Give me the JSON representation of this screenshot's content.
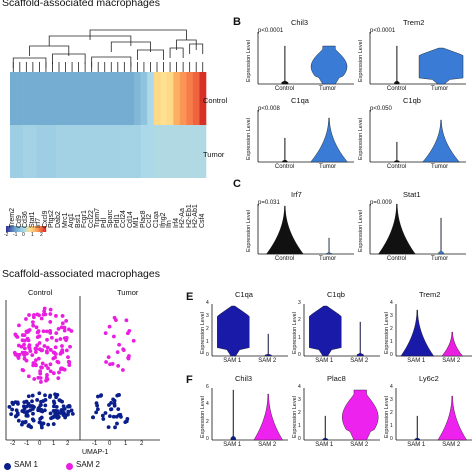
{
  "top_title": "Scaffold-associated macrophages",
  "bottom_title": "Scaffold-associated macrophages",
  "panel_labels": {
    "B": "B",
    "C": "C",
    "E": "E",
    "F": "F"
  },
  "heatmap": {
    "row_labels": [
      "Control",
      "Tumor"
    ],
    "genes": [
      "Trem2",
      "Cd9",
      "Cd36",
      "Stat1",
      "Irf7",
      "Cxcl9",
      "Ptgs2",
      "Dab2",
      "Mrc1",
      "Arg1",
      "Bst1",
      "Fcgr1",
      "Ccl22",
      "Trpm7",
      "Pdl",
      "Sparc",
      "Pdl1",
      "Ccl24",
      "Cd14",
      "Ml1",
      "Plac8",
      "Ccl2",
      "C1qa",
      "Ifng2",
      "Ifn",
      "Irf4",
      "H2-Aa",
      "H2-Eb1",
      "H2-Ab1",
      "Csf4"
    ],
    "control": [
      0.25,
      0.25,
      0.25,
      0.25,
      0.25,
      0.25,
      0.25,
      0.25,
      0.25,
      0.25,
      0.25,
      0.25,
      0.25,
      0.25,
      0.25,
      0.25,
      0.25,
      0.25,
      0.25,
      0.3,
      0.35,
      0.45,
      0.62,
      0.6,
      0.62,
      0.75,
      0.8,
      0.85,
      0.9,
      1.0
    ],
    "tumor": [
      0.4,
      0.4,
      0.42,
      0.42,
      0.4,
      0.4,
      0.4,
      0.42,
      0.42,
      0.42,
      0.42,
      0.42,
      0.42,
      0.42,
      0.42,
      0.42,
      0.42,
      0.42,
      0.42,
      0.42,
      0.45,
      0.45,
      0.46,
      0.46,
      0.46,
      0.46,
      0.46,
      0.46,
      0.46,
      0.46
    ]
  },
  "legend": {
    "ticks": [
      "-2",
      "-1",
      "0",
      "1",
      "2"
    ]
  },
  "violins_B": [
    {
      "gene": "Chil3",
      "pvalue": "p<0.0001",
      "xlabels": [
        "Control",
        "Tumor"
      ],
      "ylabel": "Expression Level"
    },
    {
      "gene": "Trem2",
      "pvalue": "p<0.0001",
      "xlabels": [
        "Control",
        "Tumor"
      ],
      "ylabel": "Expression Level"
    },
    {
      "gene": "C1qa",
      "pvalue": "p<0.008",
      "xlabels": [
        "Control",
        "Tumor"
      ],
      "ylabel": "Expression Level"
    },
    {
      "gene": "C1qb",
      "pvalue": "p<0.050",
      "xlabels": [
        "Control",
        "Tumor"
      ],
      "ylabel": "Expression Level"
    }
  ],
  "violins_C": [
    {
      "gene": "Irf7",
      "pvalue": "p=0.031",
      "xlabels": [
        "Control",
        "Tumor"
      ],
      "ylabel": "Expression Level"
    },
    {
      "gene": "Stat1",
      "pvalue": "p=0.009",
      "xlabels": [
        "Control",
        "Tumor"
      ],
      "ylabel": "Expression Level"
    }
  ],
  "umap": {
    "facets": [
      "Control",
      "Tumor"
    ],
    "x_ticks": [
      "-2",
      "-1",
      "0",
      "1",
      "2",
      "-1",
      "0",
      "1",
      "2"
    ],
    "xlabel": "UMAP-1",
    "legend": [
      {
        "label": "SAM 1",
        "color": "#0a1e8c"
      },
      {
        "label": "SAM 2",
        "color": "#e91ee0"
      }
    ]
  },
  "violins_E": [
    {
      "gene": "C1qa",
      "xlabels": [
        "SAM 1",
        "SAM 2"
      ],
      "y_ticks": [
        "0",
        "1",
        "2",
        "3",
        "4"
      ],
      "ylabel": "Expression Level",
      "color": "#1a1aa8"
    },
    {
      "gene": "C1qb",
      "xlabels": [
        "SAM 1",
        "SAM 2"
      ],
      "y_ticks": [
        "0",
        "1",
        "2",
        "3"
      ],
      "ylabel": "Expression Level",
      "color": "#1a1aa8"
    },
    {
      "gene": "Trem2",
      "xlabels": [
        "SAM 1",
        "SAM 2"
      ],
      "y_ticks": [
        "0",
        "1",
        "2",
        "3",
        "4"
      ],
      "ylabel": "Expression Level",
      "color": "#1a1aa8"
    }
  ],
  "violins_F": [
    {
      "gene": "Chil3",
      "xlabels": [
        "SAM 1",
        "SAM 2"
      ],
      "y_ticks": [
        "0",
        "2",
        "4",
        "6"
      ],
      "ylabel": "Expression Level",
      "color": "#ee22ee"
    },
    {
      "gene": "Plac8",
      "xlabels": [
        "SAM 1",
        "SAM 2"
      ],
      "y_ticks": [
        "0",
        "1",
        "2",
        "3",
        "4"
      ],
      "ylabel": "Expression Level",
      "color": "#ee22ee"
    },
    {
      "gene": "Ly6c2",
      "xlabels": [
        "SAM 1",
        "SAM 2"
      ],
      "y_ticks": [
        "0",
        "1",
        "2",
        "3",
        "4"
      ],
      "ylabel": "Expression Level",
      "color": "#ee22ee"
    }
  ],
  "colors": {
    "violin_blue": "#3a7bd5",
    "dark": "#111111",
    "sam1": "#0a1e8c",
    "sam2": "#e91ee0"
  }
}
